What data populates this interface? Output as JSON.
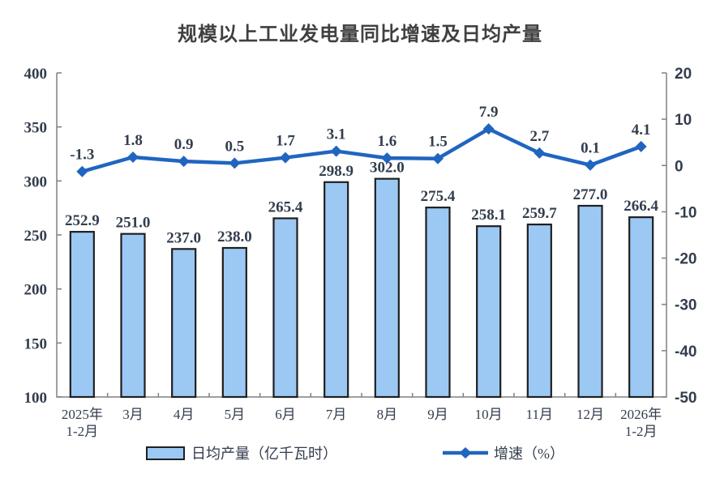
{
  "title": "规模以上工业发电量同比增速及日均产量",
  "chart_data": {
    "type": "combo",
    "categories": [
      "2025年\n1-2月",
      "3月",
      "4月",
      "5月",
      "6月",
      "7月",
      "8月",
      "9月",
      "10月",
      "11月",
      "12月",
      "2026年\n1-2月"
    ],
    "series": [
      {
        "name": "日均产量（亿千瓦时）",
        "type": "bar",
        "axis": "left",
        "values": [
          252.9,
          251.0,
          237.0,
          238.0,
          265.4,
          298.9,
          302.0,
          275.4,
          258.1,
          259.7,
          277.0,
          266.4
        ]
      },
      {
        "name": "增速（%）",
        "type": "line",
        "axis": "right",
        "values": [
          -1.3,
          1.8,
          0.9,
          0.5,
          1.7,
          3.1,
          1.6,
          1.5,
          7.9,
          2.7,
          0.1,
          4.1
        ]
      }
    ],
    "left_axis": {
      "min": 100,
      "max": 400,
      "step": 50,
      "tick_labels": [
        "400",
        "350",
        "300",
        "250",
        "200",
        "150",
        "100"
      ]
    },
    "right_axis": {
      "min": -50,
      "max": 20,
      "step": 10,
      "tick_labels": [
        "20",
        "10",
        "0",
        "-10",
        "-20",
        "-30",
        "-40",
        "-50"
      ]
    },
    "grid": false,
    "legend_position": "bottom",
    "colors": {
      "bar_fill": "#9CC9F4",
      "bar_border": "#1F1F1F",
      "line": "#2065C0",
      "axis": "#808080",
      "text": "#333D4D",
      "title_text": "#404040"
    }
  }
}
